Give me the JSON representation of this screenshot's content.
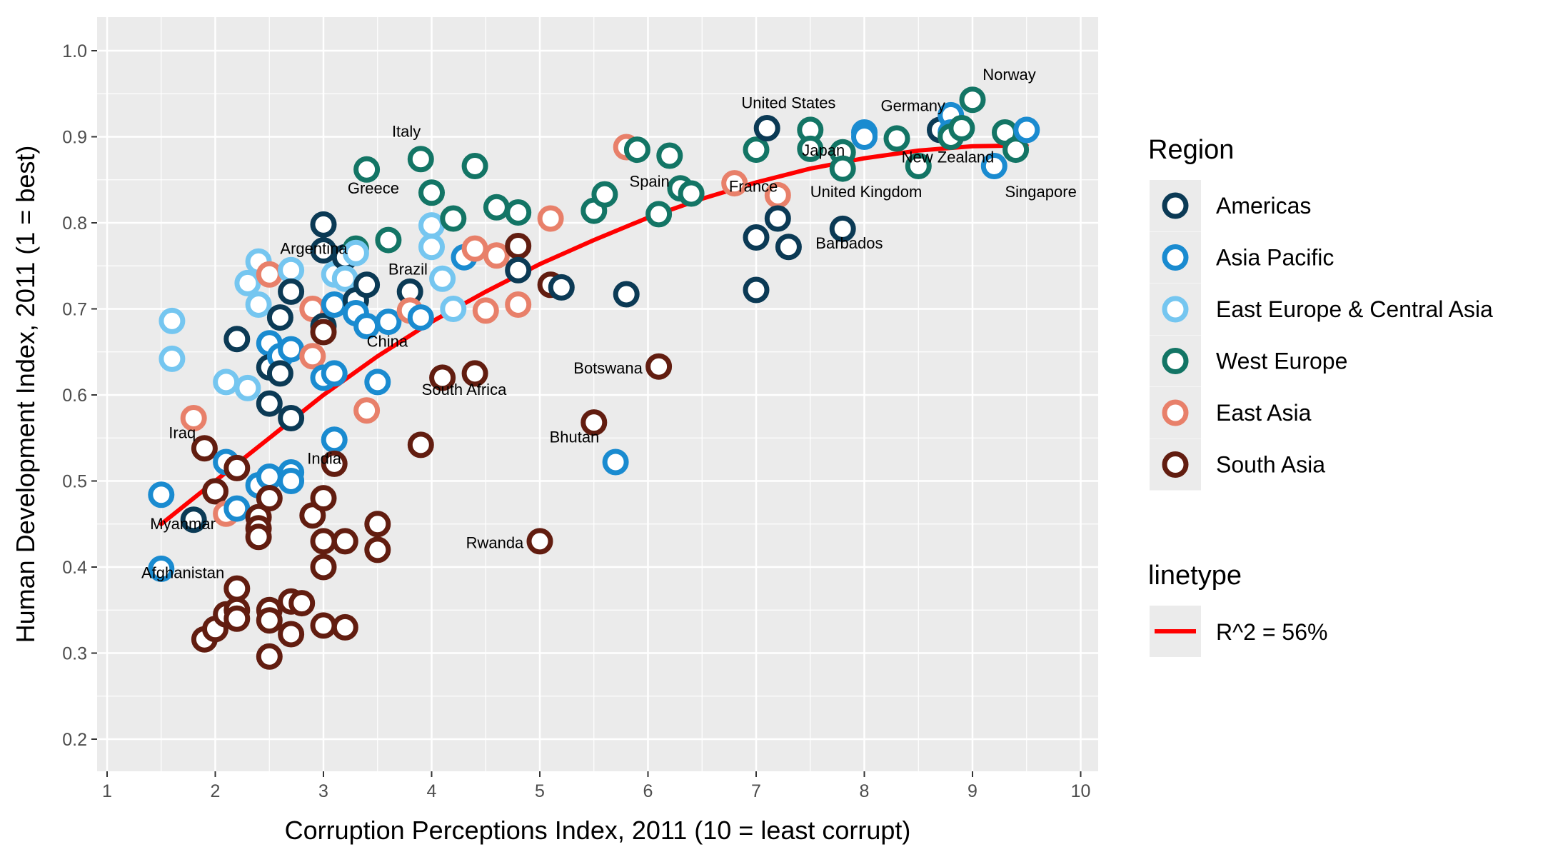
{
  "chart_data": {
    "type": "scatter",
    "xlabel": "Corruption Perceptions Index, 2011 (10 = least corrupt)",
    "ylabel": "Human Development Index, 2011 (1 = best)",
    "xlim": [
      1,
      10
    ],
    "ylim": [
      0.2,
      1.0
    ],
    "x_ticks": [
      "1",
      "2",
      "3",
      "4",
      "5",
      "6",
      "7",
      "8",
      "9",
      "10"
    ],
    "y_ticks": [
      "0.2",
      "0.3",
      "0.4",
      "0.5",
      "0.6",
      "0.7",
      "0.8",
      "0.9",
      "1.0"
    ],
    "grid": true,
    "legend": {
      "placement": "right",
      "region_title": "Region",
      "linetype_title": "linetype",
      "linetype_label": "R^2 = 56%"
    },
    "regions": [
      {
        "name": "Americas",
        "color": "#0b3a55"
      },
      {
        "name": "Asia Pacific",
        "color": "#1a8bd0"
      },
      {
        "name": "East Europe & Central Asia",
        "color": "#75c6f0"
      },
      {
        "name": "West Europe",
        "color": "#137565"
      },
      {
        "name": "East Asia",
        "color": "#e8806a"
      },
      {
        "name": "South Asia",
        "color": "#621d10"
      }
    ],
    "trend": {
      "color": "#ff0000",
      "points": [
        [
          1.5,
          0.45
        ],
        [
          2,
          0.5
        ],
        [
          2.5,
          0.55
        ],
        [
          3,
          0.6
        ],
        [
          3.5,
          0.645
        ],
        [
          4,
          0.685
        ],
        [
          4.5,
          0.72
        ],
        [
          5,
          0.752
        ],
        [
          5.5,
          0.78
        ],
        [
          6,
          0.806
        ],
        [
          6.5,
          0.828
        ],
        [
          7,
          0.847
        ],
        [
          7.5,
          0.863
        ],
        [
          8,
          0.875
        ],
        [
          8.5,
          0.884
        ],
        [
          9,
          0.889
        ],
        [
          9.5,
          0.89
        ]
      ]
    },
    "points": [
      [
        1.5,
        0.484,
        1
      ],
      [
        1.5,
        0.398,
        1
      ],
      [
        1.6,
        0.686,
        2
      ],
      [
        1.6,
        0.642,
        2
      ],
      [
        1.8,
        0.573,
        4
      ],
      [
        1.8,
        0.455,
        0
      ],
      [
        1.9,
        0.538,
        5
      ],
      [
        1.9,
        0.316,
        5
      ],
      [
        2.0,
        0.488,
        5
      ],
      [
        2.0,
        0.328,
        5
      ],
      [
        2.1,
        0.615,
        2
      ],
      [
        2.1,
        0.522,
        1
      ],
      [
        2.1,
        0.462,
        4
      ],
      [
        2.1,
        0.345,
        5
      ],
      [
        2.2,
        0.665,
        0
      ],
      [
        2.2,
        0.515,
        5
      ],
      [
        2.2,
        0.468,
        1
      ],
      [
        2.2,
        0.375,
        5
      ],
      [
        2.2,
        0.35,
        5
      ],
      [
        2.2,
        0.34,
        5
      ],
      [
        2.3,
        0.73,
        2
      ],
      [
        2.3,
        0.608,
        2
      ],
      [
        2.4,
        0.755,
        2
      ],
      [
        2.4,
        0.705,
        2
      ],
      [
        2.4,
        0.495,
        1
      ],
      [
        2.4,
        0.458,
        5
      ],
      [
        2.4,
        0.445,
        5
      ],
      [
        2.4,
        0.435,
        5
      ],
      [
        2.5,
        0.74,
        4
      ],
      [
        2.5,
        0.66,
        1
      ],
      [
        2.5,
        0.632,
        0
      ],
      [
        2.5,
        0.59,
        0
      ],
      [
        2.5,
        0.505,
        1
      ],
      [
        2.5,
        0.48,
        5
      ],
      [
        2.5,
        0.35,
        5
      ],
      [
        2.5,
        0.338,
        5
      ],
      [
        2.5,
        0.296,
        5
      ],
      [
        2.6,
        0.69,
        0
      ],
      [
        2.6,
        0.645,
        1
      ],
      [
        2.6,
        0.625,
        0
      ],
      [
        2.7,
        0.745,
        2
      ],
      [
        2.7,
        0.72,
        0
      ],
      [
        2.7,
        0.653,
        1
      ],
      [
        2.7,
        0.573,
        0
      ],
      [
        2.7,
        0.51,
        1
      ],
      [
        2.7,
        0.5,
        1
      ],
      [
        2.7,
        0.36,
        5
      ],
      [
        2.7,
        0.322,
        5
      ],
      [
        2.8,
        0.358,
        5
      ],
      [
        2.9,
        0.7,
        4
      ],
      [
        2.9,
        0.645,
        4
      ],
      [
        2.9,
        0.46,
        5
      ],
      [
        3.0,
        0.798,
        0
      ],
      [
        3.0,
        0.768,
        0
      ],
      [
        3.0,
        0.68,
        0
      ],
      [
        3.0,
        0.673,
        5
      ],
      [
        3.0,
        0.62,
        1
      ],
      [
        3.0,
        0.48,
        5
      ],
      [
        3.0,
        0.43,
        5
      ],
      [
        3.0,
        0.4,
        5
      ],
      [
        3.0,
        0.332,
        5
      ],
      [
        3.1,
        0.74,
        2
      ],
      [
        3.1,
        0.705,
        1
      ],
      [
        3.1,
        0.625,
        1
      ],
      [
        3.1,
        0.548,
        1
      ],
      [
        3.1,
        0.52,
        5
      ],
      [
        3.2,
        0.76,
        0
      ],
      [
        3.2,
        0.735,
        2
      ],
      [
        3.2,
        0.43,
        5
      ],
      [
        3.2,
        0.33,
        5
      ],
      [
        3.3,
        0.77,
        3
      ],
      [
        3.3,
        0.765,
        2
      ],
      [
        3.3,
        0.71,
        0
      ],
      [
        3.3,
        0.695,
        1
      ],
      [
        3.4,
        0.862,
        3
      ],
      [
        3.4,
        0.728,
        0
      ],
      [
        3.4,
        0.68,
        1
      ],
      [
        3.4,
        0.582,
        4
      ],
      [
        3.5,
        0.615,
        1
      ],
      [
        3.5,
        0.45,
        5
      ],
      [
        3.5,
        0.42,
        5
      ],
      [
        3.6,
        0.78,
        3
      ],
      [
        3.6,
        0.685,
        1
      ],
      [
        3.8,
        0.72,
        0
      ],
      [
        3.8,
        0.698,
        4
      ],
      [
        3.9,
        0.874,
        3
      ],
      [
        3.9,
        0.69,
        1
      ],
      [
        3.9,
        0.542,
        5
      ],
      [
        4.0,
        0.835,
        3
      ],
      [
        4.0,
        0.797,
        2
      ],
      [
        4.0,
        0.772,
        2
      ],
      [
        4.1,
        0.735,
        2
      ],
      [
        4.1,
        0.62,
        5
      ],
      [
        4.2,
        0.805,
        3
      ],
      [
        4.2,
        0.7,
        2
      ],
      [
        4.3,
        0.76,
        1
      ],
      [
        4.4,
        0.866,
        3
      ],
      [
        4.4,
        0.77,
        4
      ],
      [
        4.4,
        0.625,
        5
      ],
      [
        4.5,
        0.698,
        4
      ],
      [
        4.6,
        0.818,
        3
      ],
      [
        4.6,
        0.762,
        4
      ],
      [
        4.8,
        0.812,
        3
      ],
      [
        4.8,
        0.773,
        5
      ],
      [
        4.8,
        0.745,
        0
      ],
      [
        4.8,
        0.705,
        4
      ],
      [
        5.0,
        0.43,
        5
      ],
      [
        5.1,
        0.805,
        4
      ],
      [
        5.1,
        0.728,
        5
      ],
      [
        5.2,
        0.725,
        0
      ],
      [
        5.5,
        0.814,
        3
      ],
      [
        5.5,
        0.568,
        5
      ],
      [
        5.6,
        0.833,
        3
      ],
      [
        5.7,
        0.522,
        1
      ],
      [
        5.8,
        0.888,
        4
      ],
      [
        5.8,
        0.717,
        0
      ],
      [
        5.9,
        0.885,
        3
      ],
      [
        6.1,
        0.81,
        3
      ],
      [
        6.1,
        0.633,
        5
      ],
      [
        6.2,
        0.878,
        3
      ],
      [
        6.3,
        0.84,
        3
      ],
      [
        6.4,
        0.834,
        3
      ],
      [
        6.8,
        0.846,
        4
      ],
      [
        7.0,
        0.885,
        3
      ],
      [
        7.0,
        0.783,
        0
      ],
      [
        7.0,
        0.722,
        0
      ],
      [
        7.1,
        0.91,
        0
      ],
      [
        7.2,
        0.832,
        4
      ],
      [
        7.2,
        0.805,
        0
      ],
      [
        7.3,
        0.772,
        0
      ],
      [
        7.5,
        0.908,
        3
      ],
      [
        7.5,
        0.886,
        3
      ],
      [
        7.8,
        0.882,
        3
      ],
      [
        7.8,
        0.863,
        3
      ],
      [
        7.8,
        0.793,
        0
      ],
      [
        8.0,
        0.905,
        1
      ],
      [
        8.0,
        0.9,
        1
      ],
      [
        8.3,
        0.898,
        3
      ],
      [
        8.5,
        0.866,
        3
      ],
      [
        8.7,
        0.908,
        0
      ],
      [
        8.8,
        0.925,
        1
      ],
      [
        8.8,
        0.905,
        1
      ],
      [
        8.8,
        0.9,
        3
      ],
      [
        8.9,
        0.91,
        3
      ],
      [
        9.0,
        0.943,
        3
      ],
      [
        9.2,
        0.866,
        1
      ],
      [
        9.3,
        0.905,
        3
      ],
      [
        9.4,
        0.885,
        3
      ],
      [
        9.5,
        0.908,
        1
      ]
    ],
    "annotations": [
      {
        "text": "Norway",
        "x": 9.34,
        "y": 0.966,
        "anchor": "middle"
      },
      {
        "text": "United States",
        "x": 7.3,
        "y": 0.933,
        "anchor": "middle"
      },
      {
        "text": "Germany",
        "x": 8.45,
        "y": 0.93,
        "anchor": "middle"
      },
      {
        "text": "Italy",
        "x": 3.9,
        "y": 0.9,
        "anchor": "end"
      },
      {
        "text": "Japan",
        "x": 7.82,
        "y": 0.878,
        "anchor": "end"
      },
      {
        "text": "New Zealand",
        "x": 9.2,
        "y": 0.87,
        "anchor": "end"
      },
      {
        "text": "Spain",
        "x": 6.2,
        "y": 0.842,
        "anchor": "end"
      },
      {
        "text": "France",
        "x": 7.2,
        "y": 0.836,
        "anchor": "end"
      },
      {
        "text": "Greece",
        "x": 3.7,
        "y": 0.834,
        "anchor": "end"
      },
      {
        "text": "United Kingdom",
        "x": 7.5,
        "y": 0.83,
        "anchor": "start"
      },
      {
        "text": "Singapore",
        "x": 9.3,
        "y": 0.83,
        "anchor": "start"
      },
      {
        "text": "Barbados",
        "x": 7.55,
        "y": 0.77,
        "anchor": "start"
      },
      {
        "text": "Argentina",
        "x": 2.6,
        "y": 0.764,
        "anchor": "start"
      },
      {
        "text": "Brazil",
        "x": 3.6,
        "y": 0.74,
        "anchor": "start"
      },
      {
        "text": "China",
        "x": 3.4,
        "y": 0.656,
        "anchor": "start"
      },
      {
        "text": "Botswana",
        "x": 5.95,
        "y": 0.625,
        "anchor": "end"
      },
      {
        "text": "South Africa",
        "x": 4.3,
        "y": 0.6,
        "anchor": "middle"
      },
      {
        "text": "Bhutan",
        "x": 5.55,
        "y": 0.545,
        "anchor": "end"
      },
      {
        "text": "Iraq",
        "x": 1.82,
        "y": 0.55,
        "anchor": "end"
      },
      {
        "text": "India",
        "x": 2.85,
        "y": 0.52,
        "anchor": "start"
      },
      {
        "text": "Myanmar",
        "x": 1.7,
        "y": 0.444,
        "anchor": "middle"
      },
      {
        "text": "Rwanda",
        "x": 4.85,
        "y": 0.422,
        "anchor": "end"
      },
      {
        "text": "Afghanistan",
        "x": 1.7,
        "y": 0.387,
        "anchor": "middle"
      }
    ]
  }
}
